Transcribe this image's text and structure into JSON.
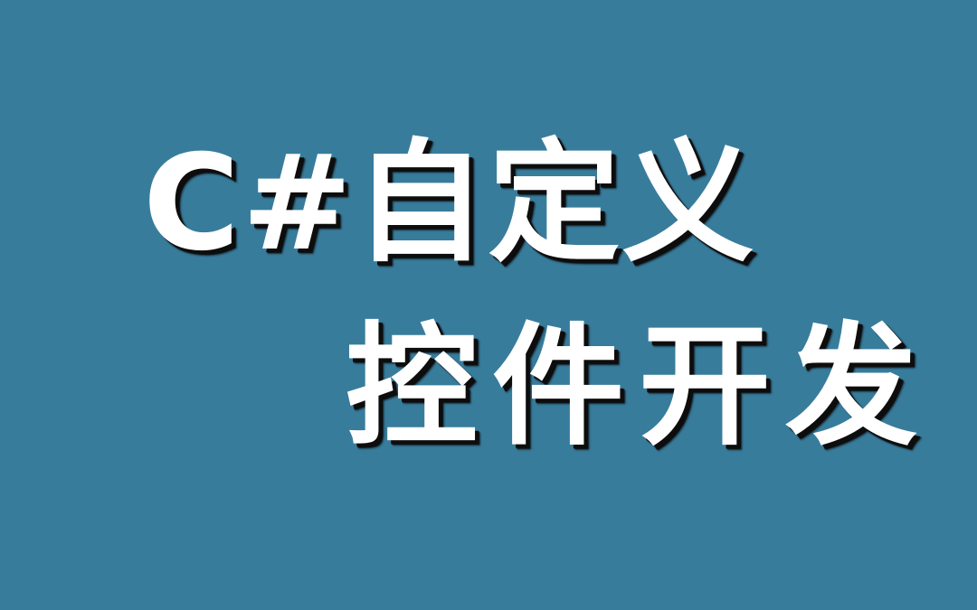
{
  "title": {
    "line1": "C#自定义",
    "line2": "控件开发"
  },
  "colors": {
    "background": "#387c9c",
    "text": "#ffffff",
    "shadow": "#0d0d0d"
  }
}
